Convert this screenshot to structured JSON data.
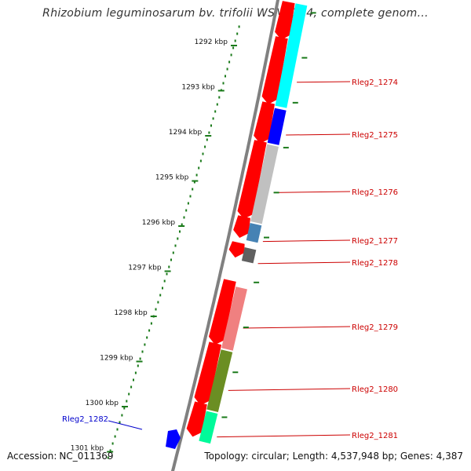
{
  "title": "Rhizobium leguminosarum bv. trifolii WSM2304, complete genom...",
  "accession": {
    "label": "Accession:",
    "value": "NC_011369"
  },
  "summary": "Topology: circular; Length: 4,537,948 bp; Genes: 4,387",
  "ruler_ticks": [
    "1292 kbp",
    "1293 kbp",
    "1294 kbp",
    "1295 kbp",
    "1296 kbp",
    "1297 kbp",
    "1298 kbp",
    "1299 kbp",
    "1300 kbp",
    "1301 kbp"
  ],
  "gene_labels": [
    "Rleg2_1274",
    "Rleg2_1275",
    "Rleg2_1276",
    "Rleg2_1277",
    "Rleg2_1278",
    "Rleg2_1279",
    "Rleg2_1280",
    "Rleg2_1281",
    "Rleg2_1282"
  ],
  "colors": {
    "backbone": "#808080",
    "cds": "#ff0000",
    "label_red": "#cc0000",
    "label_blue": "#0000cc",
    "ruler": "#1a7a1a",
    "cyan": "#00ffff",
    "blue": "#0000ff",
    "light_gray": "#c0c0c0",
    "steel_blue": "#4682b4",
    "dark_gray": "#606060",
    "salmon": "#f08080",
    "olive": "#6b8e23",
    "aquamarine": "#00fa9a"
  }
}
